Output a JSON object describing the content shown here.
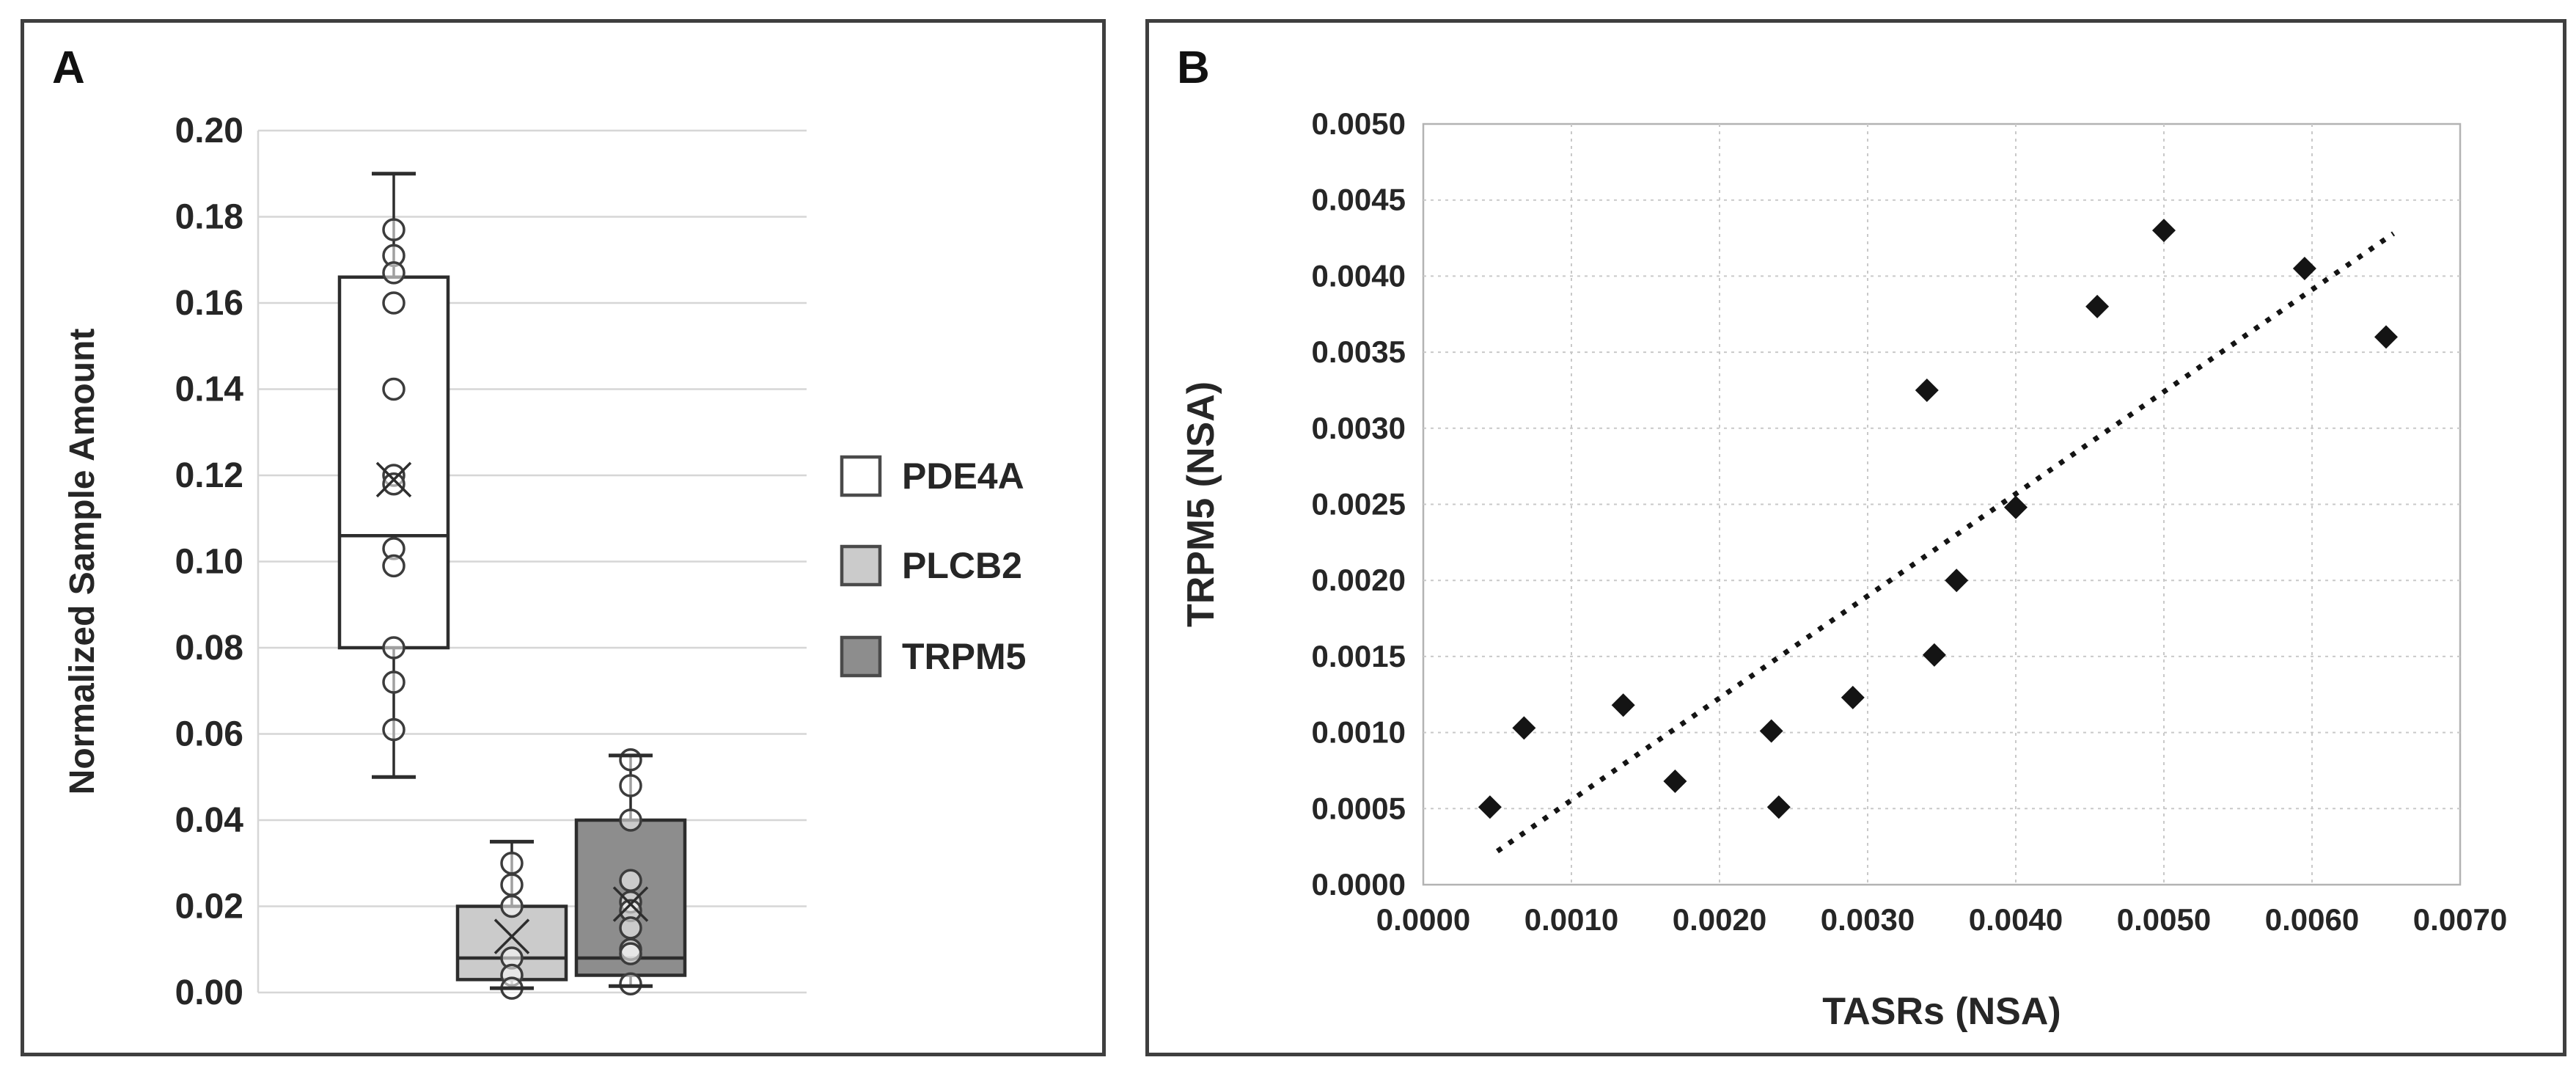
{
  "figure": {
    "background": "#ffffff",
    "panels": [
      {
        "id": "A",
        "label": "A"
      },
      {
        "id": "B",
        "label": "B"
      }
    ]
  },
  "chart_data": [
    {
      "type": "box",
      "panel": "A",
      "ylabel": "Normalized Sample Amount",
      "ylim": [
        0.0,
        0.2
      ],
      "ytick_step": 0.02,
      "ytick_labels": [
        "0.00",
        "0.02",
        "0.04",
        "0.06",
        "0.08",
        "0.10",
        "0.12",
        "0.14",
        "0.16",
        "0.18",
        "0.20"
      ],
      "grid": "horizontal gridlines every 0.02, light gray",
      "legend_position": "right",
      "point_marker": "open-circle",
      "mean_marker": "x",
      "series": [
        {
          "name": "PDE4A",
          "fill": "#ffffff",
          "whisker_min": 0.05,
          "q1": 0.08,
          "median": 0.106,
          "q3": 0.166,
          "whisker_max": 0.19,
          "mean": 0.119,
          "points": [
            0.177,
            0.171,
            0.167,
            0.16,
            0.14,
            0.12,
            0.118,
            0.103,
            0.099,
            0.08,
            0.072,
            0.061
          ]
        },
        {
          "name": "PLCB2",
          "fill": "#cbcbcb",
          "whisker_min": 0.001,
          "q1": 0.003,
          "median": 0.008,
          "q3": 0.02,
          "whisker_max": 0.035,
          "mean": 0.013,
          "points": [
            0.03,
            0.025,
            0.02,
            0.008,
            0.004,
            0.001
          ]
        },
        {
          "name": "TRPM5",
          "fill": "#8d8d8d",
          "whisker_min": 0.0015,
          "q1": 0.004,
          "median": 0.008,
          "q3": 0.04,
          "whisker_max": 0.055,
          "mean": 0.0205,
          "points": [
            0.054,
            0.048,
            0.04,
            0.026,
            0.021,
            0.019,
            0.015,
            0.01,
            0.009,
            0.002
          ]
        }
      ]
    },
    {
      "type": "scatter",
      "panel": "B",
      "xlabel": "TASRs (NSA)",
      "ylabel": "TRPM5 (NSA)",
      "xlim": [
        0.0,
        0.007
      ],
      "ylim": [
        0.0,
        0.005
      ],
      "xtick_step": 0.001,
      "ytick_step": 0.0005,
      "xtick_labels": [
        "0.0000",
        "0.0010",
        "0.0020",
        "0.0030",
        "0.0040",
        "0.0050",
        "0.0060",
        "0.0070"
      ],
      "ytick_labels": [
        "0.0000",
        "0.0005",
        "0.0010",
        "0.0015",
        "0.0020",
        "0.0025",
        "0.0030",
        "0.0035",
        "0.0040",
        "0.0045",
        "0.0050"
      ],
      "grid": "dotted gridlines at every tick, both axes",
      "marker": "filled-diamond",
      "points": [
        [
          0.00045,
          0.00051
        ],
        [
          0.00068,
          0.00103
        ],
        [
          0.00135,
          0.00118
        ],
        [
          0.0017,
          0.00068
        ],
        [
          0.00235,
          0.00101
        ],
        [
          0.0024,
          0.00051
        ],
        [
          0.0029,
          0.00123
        ],
        [
          0.0034,
          0.00325
        ],
        [
          0.00345,
          0.00151
        ],
        [
          0.0036,
          0.002
        ],
        [
          0.004,
          0.00248
        ],
        [
          0.00455,
          0.0038
        ],
        [
          0.005,
          0.0043
        ],
        [
          0.00595,
          0.00405
        ],
        [
          0.0065,
          0.0036
        ]
      ],
      "trendline": {
        "style": "dotted",
        "x1": 0.0005,
        "y1": 0.00022,
        "x2": 0.00655,
        "y2": 0.00428
      }
    }
  ],
  "colors": {
    "panel_border": "#3f3f3f",
    "grid_a": "#d6d6d6",
    "grid_b": "#c9c9c9",
    "plot_border_b": "#b3b3b3",
    "box_stroke": "#2d2d2d",
    "marker_stroke": "#3c3c3c",
    "marker_fill": "rgba(255,255,255,0.55)",
    "scatter_fill": "#141414",
    "text": "#262626"
  }
}
